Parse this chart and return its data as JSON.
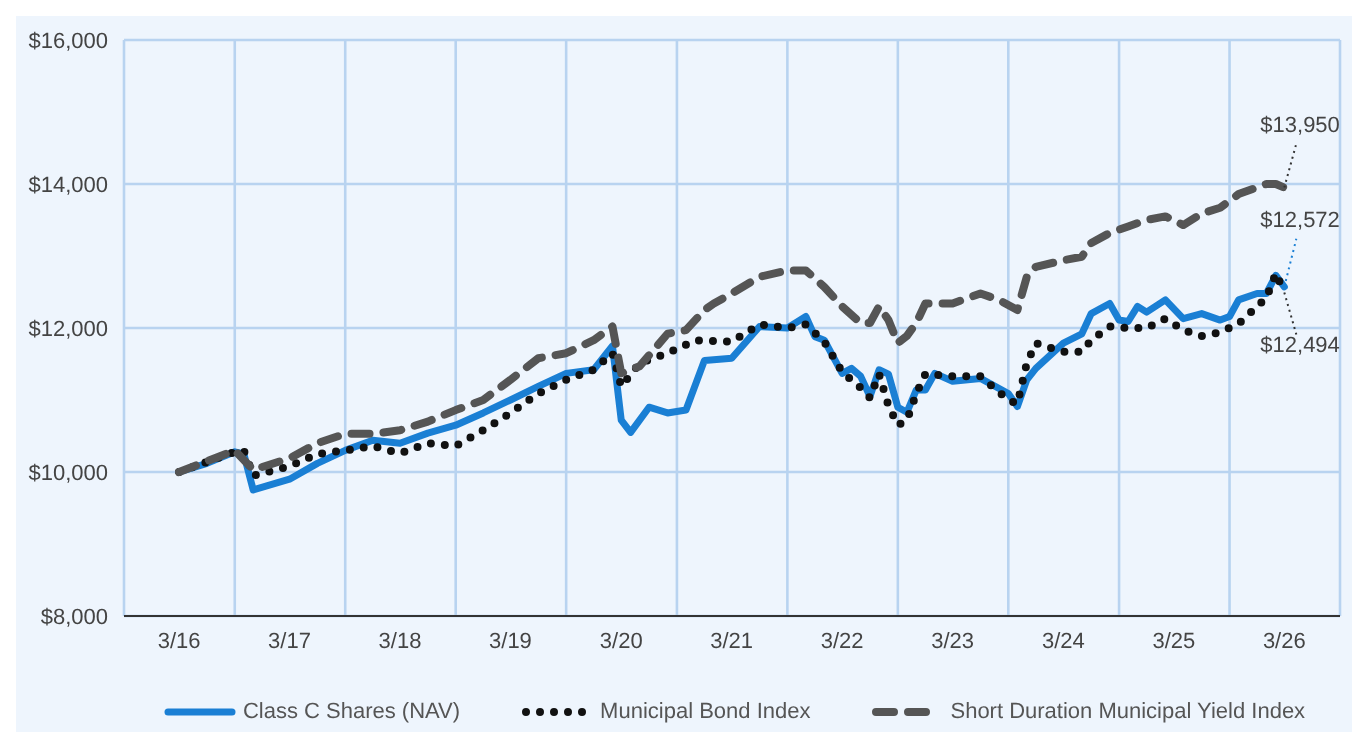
{
  "chart_data": {
    "type": "line",
    "legend": "bottom",
    "grid": true,
    "xlim": [
      "2015-09",
      "2026-09"
    ],
    "xticks": [
      {
        "value": "2015-09",
        "label": null
      },
      {
        "value": "2016-03",
        "label": "3/16"
      },
      {
        "value": "2016-09",
        "label": null
      },
      {
        "value": "2017-03",
        "label": "3/17"
      },
      {
        "value": "2017-09",
        "label": null
      },
      {
        "value": "2018-03",
        "label": "3/18"
      },
      {
        "value": "2018-09",
        "label": null
      },
      {
        "value": "2019-03",
        "label": "3/19"
      },
      {
        "value": "2019-09",
        "label": null
      },
      {
        "value": "2020-03",
        "label": "3/20"
      },
      {
        "value": "2020-09",
        "label": null
      },
      {
        "value": "2021-03",
        "label": "3/21"
      },
      {
        "value": "2021-09",
        "label": null
      },
      {
        "value": "2022-03",
        "label": "3/22"
      },
      {
        "value": "2022-09",
        "label": null
      },
      {
        "value": "2023-03",
        "label": "3/23"
      },
      {
        "value": "2023-09",
        "label": null
      },
      {
        "value": "2024-03",
        "label": "3/24"
      },
      {
        "value": "2024-09",
        "label": null
      },
      {
        "value": "2025-03",
        "label": "3/25"
      },
      {
        "value": "2025-09",
        "label": null
      },
      {
        "value": "2026-03",
        "label": "3/26"
      },
      {
        "value": "2026-09",
        "label": null
      }
    ],
    "ylim": [
      8000,
      16000
    ],
    "yticks": [
      {
        "value": 8000,
        "label": "$8,000"
      },
      {
        "value": 10000,
        "label": "$10,000"
      },
      {
        "value": 12000,
        "label": "$12,000"
      },
      {
        "value": 14000,
        "label": "$14,000"
      },
      {
        "value": 16000,
        "label": "$16,000"
      }
    ],
    "series": [
      {
        "name": "Class C Shares (NAV)",
        "color": "#1a7fd4",
        "line_style": "solid",
        "x": [
          "2016-03",
          "2016-06",
          "2016-09",
          "2016-10",
          "2016-11",
          "2017-03",
          "2017-06",
          "2017-09",
          "2017-12",
          "2018-03",
          "2018-06",
          "2018-09",
          "2018-12",
          "2019-03",
          "2019-06",
          "2019-09",
          "2019-12",
          "2020-02",
          "2020-03",
          "2020-04",
          "2020-06",
          "2020-08",
          "2020-10",
          "2020-12",
          "2021-03",
          "2021-06",
          "2021-09",
          "2021-11",
          "2021-12",
          "2022-01",
          "2022-03",
          "2022-04",
          "2022-05",
          "2022-06",
          "2022-07",
          "2022-08",
          "2022-09",
          "2022-10",
          "2022-11",
          "2022-12",
          "2023-01",
          "2023-03",
          "2023-06",
          "2023-09",
          "2023-10",
          "2023-11",
          "2023-12",
          "2024-03",
          "2024-05",
          "2024-06",
          "2024-08",
          "2024-09",
          "2024-10",
          "2024-11",
          "2024-12",
          "2025-02",
          "2025-04",
          "2025-06",
          "2025-08",
          "2025-09",
          "2025-10",
          "2025-12",
          "2026-01",
          "2026-02",
          "2026-03"
        ],
        "values": [
          10000,
          10120,
          10280,
          10250,
          9750,
          9900,
          10120,
          10300,
          10440,
          10400,
          10540,
          10650,
          10820,
          11000,
          11190,
          11370,
          11420,
          11750,
          10720,
          10550,
          10900,
          10820,
          10860,
          11550,
          11580,
          12020,
          12000,
          12160,
          11880,
          11830,
          11370,
          11440,
          11330,
          11050,
          11420,
          11360,
          10900,
          10830,
          11140,
          11140,
          11370,
          11260,
          11300,
          11090,
          10910,
          11280,
          11440,
          11790,
          11920,
          12200,
          12340,
          12110,
          12090,
          12300,
          12220,
          12390,
          12130,
          12200,
          12110,
          12160,
          12390,
          12480,
          12480,
          12730,
          12572
        ]
      },
      {
        "name": "Municipal Bond Index",
        "color": "#111111",
        "line_style": "dotted",
        "x": [
          "2016-03",
          "2016-09",
          "2016-10",
          "2016-11",
          "2017-03",
          "2017-06",
          "2017-09",
          "2017-12",
          "2018-03",
          "2018-06",
          "2018-09",
          "2018-12",
          "2019-03",
          "2019-06",
          "2019-09",
          "2019-12",
          "2020-02",
          "2020-03",
          "2020-05",
          "2020-08",
          "2020-11",
          "2021-03",
          "2021-06",
          "2021-09",
          "2021-11",
          "2022-01",
          "2022-03",
          "2022-05",
          "2022-06",
          "2022-07",
          "2022-08",
          "2022-09",
          "2022-10",
          "2022-11",
          "2022-12",
          "2023-03",
          "2023-06",
          "2023-09",
          "2023-10",
          "2023-11",
          "2023-12",
          "2024-03",
          "2024-05",
          "2024-06",
          "2024-08",
          "2024-10",
          "2024-12",
          "2025-02",
          "2025-04",
          "2025-06",
          "2025-08",
          "2025-10",
          "2026-01",
          "2026-02",
          "2026-03"
        ],
        "values": [
          10000,
          10280,
          10300,
          9950,
          10080,
          10250,
          10300,
          10360,
          10260,
          10400,
          10360,
          10580,
          10820,
          11090,
          11280,
          11420,
          11650,
          11190,
          11510,
          11650,
          11830,
          11810,
          12050,
          12000,
          12050,
          11810,
          11390,
          11170,
          11030,
          11360,
          10920,
          10650,
          10720,
          11090,
          11360,
          11330,
          11330,
          11000,
          10950,
          11510,
          11790,
          11670,
          11670,
          11830,
          12020,
          12000,
          12000,
          12130,
          11970,
          11890,
          11940,
          12060,
          12420,
          12760,
          12494
        ]
      },
      {
        "name": "Short Duration Municipal Yield Index",
        "color": "#555555",
        "line_style": "dashed",
        "x": [
          "2016-03",
          "2016-09",
          "2016-11",
          "2017-03",
          "2017-06",
          "2017-09",
          "2017-12",
          "2018-03",
          "2018-06",
          "2018-09",
          "2018-12",
          "2019-03",
          "2019-06",
          "2019-09",
          "2019-12",
          "2020-02",
          "2020-03",
          "2020-05",
          "2020-08",
          "2020-10",
          "2020-12",
          "2021-01",
          "2021-03",
          "2021-06",
          "2021-09",
          "2021-11",
          "2022-01",
          "2022-03",
          "2022-05",
          "2022-06",
          "2022-07",
          "2022-08",
          "2022-09",
          "2022-10",
          "2022-11",
          "2022-12",
          "2023-03",
          "2023-06",
          "2023-08",
          "2023-10",
          "2023-11",
          "2023-12",
          "2024-03",
          "2024-05",
          "2024-06",
          "2024-08",
          "2024-10",
          "2024-12",
          "2025-02",
          "2025-04",
          "2025-06",
          "2025-08",
          "2025-10",
          "2026-01",
          "2026-02",
          "2026-03"
        ],
        "values": [
          10000,
          10300,
          10030,
          10190,
          10400,
          10530,
          10530,
          10580,
          10700,
          10860,
          11000,
          11280,
          11580,
          11650,
          11830,
          12020,
          11370,
          11470,
          11920,
          11970,
          12250,
          12340,
          12480,
          12710,
          12800,
          12800,
          12570,
          12300,
          12070,
          12070,
          12300,
          12110,
          11790,
          11890,
          12070,
          12340,
          12340,
          12480,
          12390,
          12250,
          12710,
          12850,
          12940,
          12990,
          13180,
          13320,
          13410,
          13500,
          13550,
          13430,
          13590,
          13670,
          13860,
          14000,
          14000,
          13950
        ]
      }
    ],
    "annotations": [
      {
        "text": "$13,950",
        "x": "2026-03",
        "y": 13950
      },
      {
        "text": "$12,572",
        "x": "2026-03",
        "y": 12572
      },
      {
        "text": "$12,494",
        "x": "2026-03",
        "y": 12494
      }
    ]
  }
}
